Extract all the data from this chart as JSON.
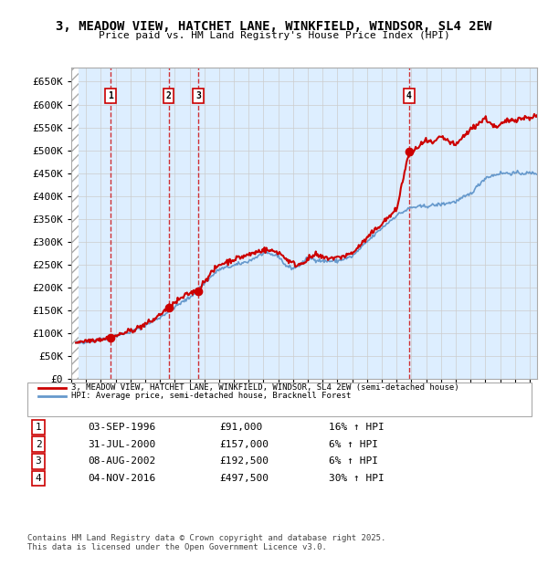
{
  "title1": "3, MEADOW VIEW, HATCHET LANE, WINKFIELD, WINDSOR, SL4 2EW",
  "title2": "Price paid vs. HM Land Registry's House Price Index (HPI)",
  "ylabel_ticks": [
    "£0",
    "£50K",
    "£100K",
    "£150K",
    "£200K",
    "£250K",
    "£300K",
    "£350K",
    "£400K",
    "£450K",
    "£500K",
    "£550K",
    "£600K",
    "£650K"
  ],
  "ytick_values": [
    0,
    50000,
    100000,
    150000,
    200000,
    250000,
    300000,
    350000,
    400000,
    450000,
    500000,
    550000,
    600000,
    650000
  ],
  "xmin": 1994,
  "xmax": 2025.5,
  "ymin": 0,
  "ymax": 680000,
  "purchases": [
    {
      "label": "1",
      "date_x": 1996.67,
      "price": 91000,
      "pct": "16%",
      "date_str": "03-SEP-1996",
      "price_str": "£91,000"
    },
    {
      "label": "2",
      "date_x": 2000.58,
      "price": 157000,
      "pct": "6%",
      "date_str": "31-JUL-2000",
      "price_str": "£157,000"
    },
    {
      "label": "3",
      "date_x": 2002.6,
      "price": 192500,
      "pct": "6%",
      "date_str": "08-AUG-2002",
      "price_str": "£192,500"
    },
    {
      "label": "4",
      "date_x": 2016.84,
      "price": 497500,
      "pct": "30%",
      "date_str": "04-NOV-2016",
      "price_str": "£497,500"
    }
  ],
  "legend_line1": "3, MEADOW VIEW, HATCHET LANE, WINKFIELD, WINDSOR, SL4 2EW (semi-detached house)",
  "legend_line2": "HPI: Average price, semi-detached house, Bracknell Forest",
  "footer": "Contains HM Land Registry data © Crown copyright and database right 2025.\nThis data is licensed under the Open Government Licence v3.0.",
  "red_color": "#cc0000",
  "blue_color": "#6699cc",
  "hatch_color": "#cccccc",
  "grid_color": "#cccccc",
  "bg_color": "#ddeeff"
}
